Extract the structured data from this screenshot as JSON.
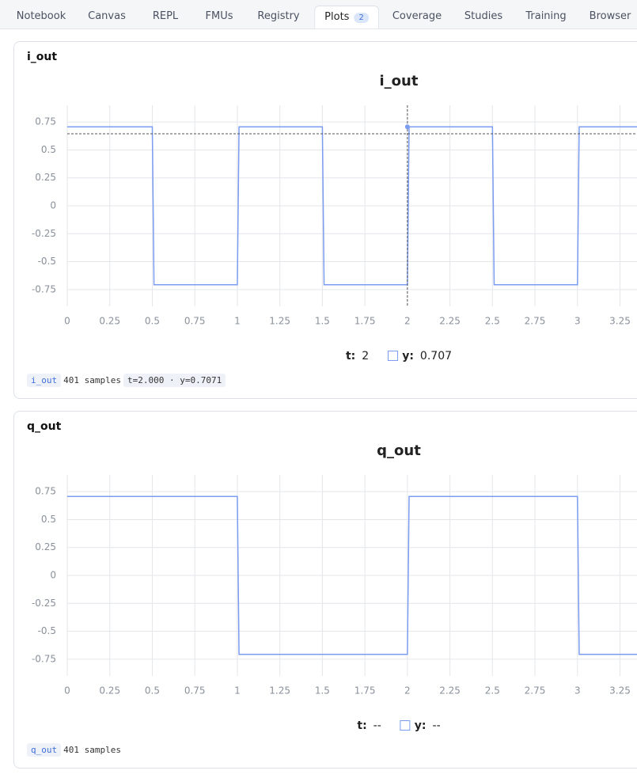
{
  "tabs": [
    {
      "label": "Notebook"
    },
    {
      "label": "Canvas"
    },
    {
      "label": "REPL"
    },
    {
      "label": "FMUs"
    },
    {
      "label": "Registry"
    },
    {
      "label": "Plots",
      "badge": 2,
      "active": true
    },
    {
      "label": "Coverage"
    },
    {
      "label": "Studies"
    },
    {
      "label": "Training"
    },
    {
      "label": "Browser"
    }
  ],
  "chart_data": [
    {
      "type": "line",
      "panel_title": "i_out",
      "title": "i_out",
      "x": [
        0,
        0.5,
        0.51,
        1,
        1.01,
        1.5,
        1.51,
        2,
        2.01,
        2.5,
        2.51,
        3,
        3.01,
        3.35
      ],
      "series": [
        {
          "name": "y:",
          "color": "#7b9cf0",
          "values": [
            0.707,
            0.707,
            -0.707,
            -0.707,
            0.707,
            0.707,
            -0.707,
            -0.707,
            0.707,
            0.707,
            -0.707,
            -0.707,
            0.707,
            0.707
          ]
        }
      ],
      "xlim": [
        0,
        3.35
      ],
      "xticks": [
        0,
        0.25,
        0.5,
        0.75,
        1,
        1.25,
        1.5,
        1.75,
        2,
        2.25,
        2.5,
        2.75,
        3,
        3.25
      ],
      "ylim": [
        -0.9,
        0.9
      ],
      "yticks": [
        -0.75,
        -0.5,
        -0.25,
        0,
        0.25,
        0.5,
        0.75
      ],
      "grid": true,
      "cursor": {
        "x": 2,
        "y": 0.645,
        "point": 0.707
      },
      "legend": {
        "x_name": "t:",
        "x_value": 2,
        "y_value": 0.707
      },
      "status": {
        "name": "i_out",
        "samples": "401 samples",
        "readout": "t=2.000 · y=0.7071"
      }
    },
    {
      "type": "line",
      "panel_title": "q_out",
      "title": "q_out",
      "x": [
        0,
        1,
        1.01,
        2,
        2.01,
        3,
        3.01,
        3.35
      ],
      "series": [
        {
          "name": "y:",
          "color": "#7b9cf0",
          "values": [
            0.707,
            0.707,
            -0.707,
            -0.707,
            0.707,
            0.707,
            -0.707,
            -0.707
          ]
        }
      ],
      "xlim": [
        0,
        3.35
      ],
      "xticks": [
        0,
        0.25,
        0.5,
        0.75,
        1,
        1.25,
        1.5,
        1.75,
        2,
        2.25,
        2.5,
        2.75,
        3,
        3.25
      ],
      "ylim": [
        -0.9,
        0.9
      ],
      "yticks": [
        -0.75,
        -0.5,
        -0.25,
        0,
        0.25,
        0.5,
        0.75
      ],
      "grid": true,
      "legend": {
        "x_name": "t:",
        "x_value": "--",
        "y_value": "--"
      },
      "status": {
        "name": "q_out",
        "samples": "401 samples"
      }
    }
  ]
}
